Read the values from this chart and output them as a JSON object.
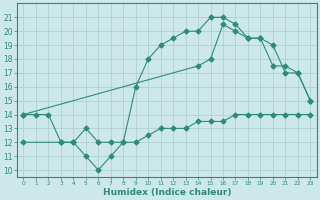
{
  "line1_x": [
    0,
    1,
    2,
    3,
    4,
    5,
    6,
    7,
    8,
    9,
    10,
    11,
    12,
    13,
    14,
    15,
    16,
    17,
    18,
    19,
    20,
    21,
    22,
    23
  ],
  "line1_y": [
    14,
    14,
    14,
    12,
    12,
    11,
    10,
    11,
    12,
    16,
    18,
    19,
    19.5,
    20,
    20,
    21,
    21,
    20.5,
    19.5,
    19.5,
    19,
    17,
    17,
    15
  ],
  "line2_x": [
    0,
    14,
    15,
    16,
    17,
    18,
    19,
    20,
    21,
    22,
    23
  ],
  "line2_y": [
    14,
    17.5,
    18,
    20.5,
    20,
    19.5,
    19.5,
    17.5,
    17.5,
    17,
    15
  ],
  "line3_x": [
    0,
    3,
    4,
    5,
    6,
    7,
    8,
    9,
    10,
    11,
    12,
    13,
    14,
    15,
    16,
    17,
    18,
    19,
    20,
    21,
    22,
    23
  ],
  "line3_y": [
    12,
    12,
    12,
    13,
    12,
    12,
    12,
    12,
    12.5,
    13,
    13,
    13,
    13.5,
    13.5,
    13.5,
    14,
    14,
    14,
    14,
    14,
    14,
    14
  ],
  "color": "#2e8b7a",
  "bg_color": "#cce8e8",
  "grid_color": "#aacccc",
  "xlabel": "Humidex (Indice chaleur)",
  "ylabel_ticks": [
    10,
    11,
    12,
    13,
    14,
    15,
    16,
    17,
    18,
    19,
    20,
    21
  ],
  "xlim": [
    -0.5,
    23.5
  ],
  "ylim": [
    9.5,
    22
  ],
  "xticks": [
    0,
    1,
    2,
    3,
    4,
    5,
    6,
    7,
    8,
    9,
    10,
    11,
    12,
    13,
    14,
    15,
    16,
    17,
    18,
    19,
    20,
    21,
    22,
    23
  ],
  "xtick_labels": [
    "0",
    "1",
    "2",
    "3",
    "4",
    "5",
    "6",
    "7",
    "8",
    "9",
    "10",
    "11",
    "12",
    "13",
    "14",
    "15",
    "16",
    "17",
    "18",
    "19",
    "20",
    "21",
    "22",
    "23"
  ]
}
